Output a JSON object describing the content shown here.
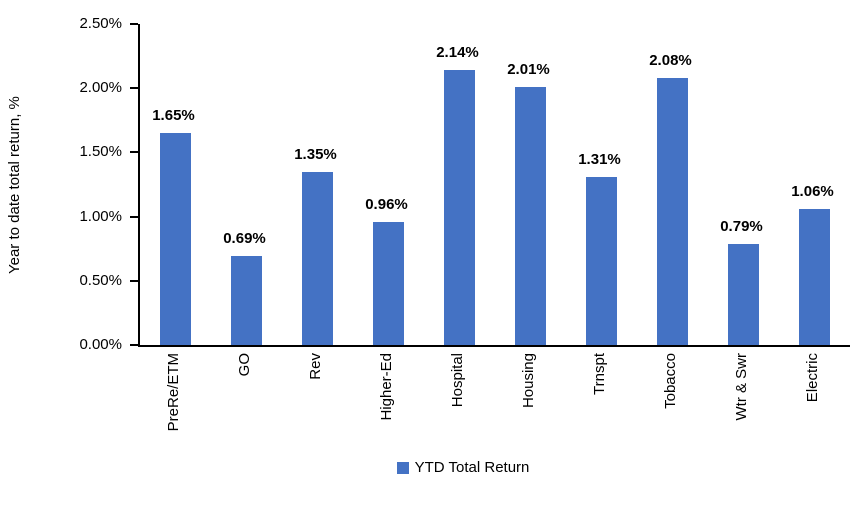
{
  "chart_data": {
    "type": "bar",
    "title": "",
    "xlabel": "",
    "ylabel": "Year to date total return, %",
    "categories": [
      "PreRe/ETM",
      "GO",
      "Rev",
      "Higher-Ed",
      "Hospital",
      "Housing",
      "Trnspt",
      "Tobacco",
      "Wtr & Swr",
      "Electric"
    ],
    "values": [
      1.65,
      0.69,
      1.35,
      0.96,
      2.14,
      2.01,
      1.31,
      2.08,
      0.79,
      1.06
    ],
    "data_labels": [
      "1.65%",
      "0.69%",
      "1.35%",
      "0.96%",
      "2.14%",
      "2.01%",
      "1.31%",
      "2.08%",
      "0.79%",
      "1.06%"
    ],
    "series_name": "YTD Total Return",
    "legend_label": "YTD Total Return",
    "legend_position": "bottom",
    "ylim": [
      0,
      2.5
    ],
    "yticks": [
      {
        "label": "0.00%",
        "value": 0.0
      },
      {
        "label": "0.50%",
        "value": 0.5
      },
      {
        "label": "1.00%",
        "value": 1.0
      },
      {
        "label": "1.50%",
        "value": 1.5
      },
      {
        "label": "2.00%",
        "value": 2.0
      },
      {
        "label": "2.50%",
        "value": 2.5
      }
    ],
    "grid": false,
    "bar_color": "#4472C4",
    "axis_color": "#000000",
    "text_color": "#000000"
  }
}
